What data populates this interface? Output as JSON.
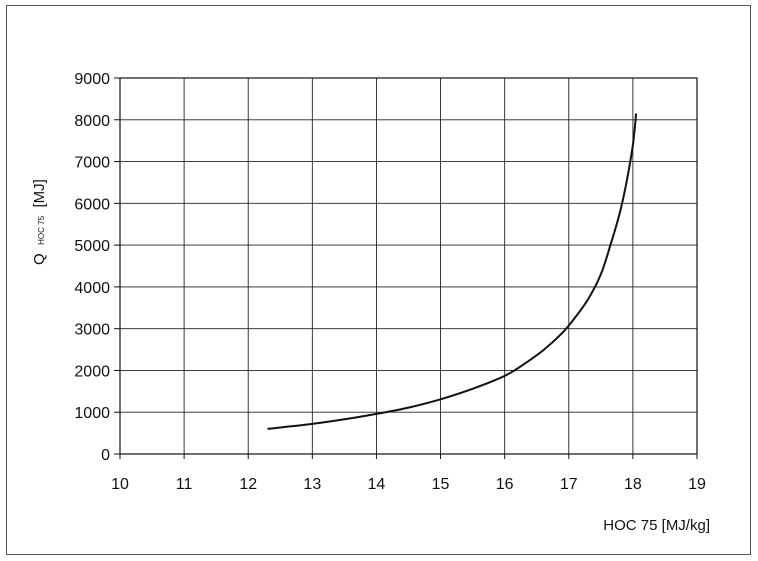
{
  "chart_data": {
    "type": "line",
    "title": "",
    "xlabel": "HOC 75 [MJ/kg]",
    "ylabel": {
      "main": "Q",
      "sub": "HOC 75",
      "unit": "[MJ]"
    },
    "xlim": [
      10,
      19
    ],
    "ylim": [
      0,
      9000
    ],
    "x_ticks": [
      "10",
      "11",
      "12",
      "13",
      "14",
      "15",
      "16",
      "17",
      "18",
      "19"
    ],
    "y_ticks": [
      "0",
      "1000",
      "2000",
      "3000",
      "4000",
      "5000",
      "6000",
      "7000",
      "8000",
      "9000"
    ],
    "grid": true,
    "legend": "none",
    "series": [
      {
        "color": "#111111",
        "x": [
          12.3,
          12.6,
          13.0,
          13.5,
          14.0,
          14.5,
          15.0,
          15.5,
          16.0,
          16.3,
          16.6,
          16.9,
          17.1,
          17.3,
          17.5,
          17.65,
          17.8,
          17.9,
          18.0,
          18.05
        ],
        "y": [
          600,
          650,
          720,
          830,
          960,
          1110,
          1310,
          1560,
          1870,
          2150,
          2480,
          2900,
          3270,
          3700,
          4300,
          5000,
          5800,
          6500,
          7400,
          8150
        ]
      }
    ]
  }
}
